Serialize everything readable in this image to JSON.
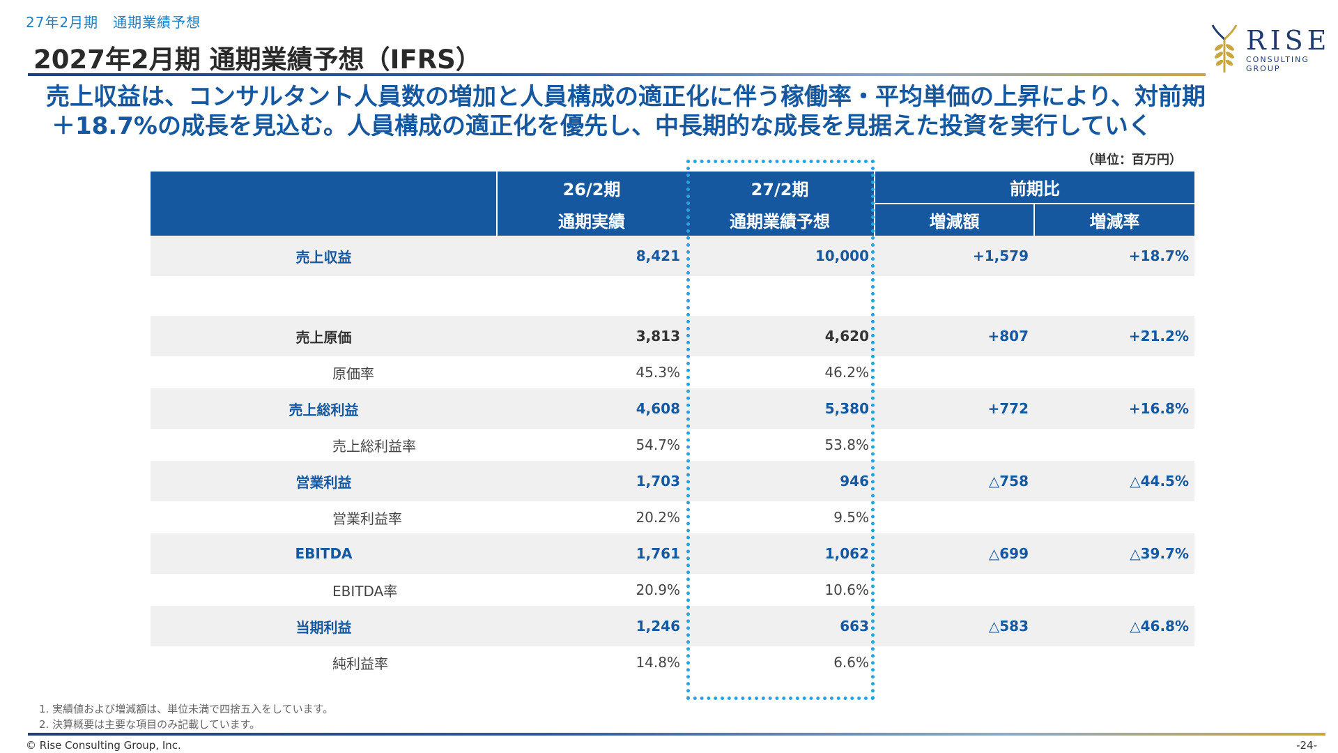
{
  "header": {
    "breadcrumb": "27年2月期　通期業績予想",
    "title": "2027年2月期  通期業績予想（IFRS）"
  },
  "logo": {
    "name": "RISE",
    "sub1": "CONSULTING",
    "sub2": "GROUP",
    "colors": {
      "navy": "#1e3a6e",
      "gold": "#c9a640"
    }
  },
  "summary": {
    "line1": "売上収益は、コンサルタント人員数の増加と人員構成の適正化に伴う稼働率・平均単価の上昇により、対前期",
    "line2": "＋18.7%の成長を見込む。人員構成の適正化を優先し、中長期的な成長を見据えた投資を実行していく"
  },
  "unit": "（単位：百万円）",
  "table": {
    "headers": {
      "col1_top": "26/2期",
      "col1_bottom": "通期実績",
      "col2_top": "27/2期",
      "col2_bottom": "通期業績予想",
      "group": "前期比",
      "diff": "増減額",
      "rate": "増減率"
    },
    "rows": {
      "revenue": {
        "label": "売上収益",
        "fy26": "8,421",
        "fy27": "10,000",
        "diff": "+1,579",
        "rate": "+18.7%"
      },
      "cogs": {
        "label": "売上原価",
        "fy26": "3,813",
        "fy27": "4,620",
        "diff": "+807",
        "rate": "+21.2%"
      },
      "cogs_ratio": {
        "label": "原価率",
        "fy26": "45.3%",
        "fy27": "46.2%"
      },
      "gross": {
        "label": "売上総利益",
        "fy26": "4,608",
        "fy27": "5,380",
        "diff": "+772",
        "rate": "+16.8%"
      },
      "gross_ratio": {
        "label": "売上総利益率",
        "fy26": "54.7%",
        "fy27": "53.8%"
      },
      "op": {
        "label": "営業利益",
        "fy26": "1,703",
        "fy27": "946",
        "diff": "△758",
        "rate": "△44.5%"
      },
      "op_ratio": {
        "label": "営業利益率",
        "fy26": "20.2%",
        "fy27": "9.5%"
      },
      "ebitda": {
        "label": "EBITDA",
        "fy26": "1,761",
        "fy27": "1,062",
        "diff": "△699",
        "rate": "△39.7%"
      },
      "ebitda_ratio": {
        "label": "EBITDA率",
        "fy26": "20.9%",
        "fy27": "10.6%"
      },
      "net": {
        "label": "当期利益",
        "fy26": "1,246",
        "fy27": "663",
        "diff": "△583",
        "rate": "△46.8%"
      },
      "net_ratio": {
        "label": "純利益率",
        "fy26": "14.8%",
        "fy27": "6.6%"
      }
    }
  },
  "notes": {
    "note1": "1. 実績値および増減額は、単位未満で四捨五入をしています。",
    "note2": "2. 決算概要は主要な項目のみ記載しています。"
  },
  "footer": {
    "copyright": "© Rise Consulting Group, Inc.",
    "page": "-24-"
  }
}
